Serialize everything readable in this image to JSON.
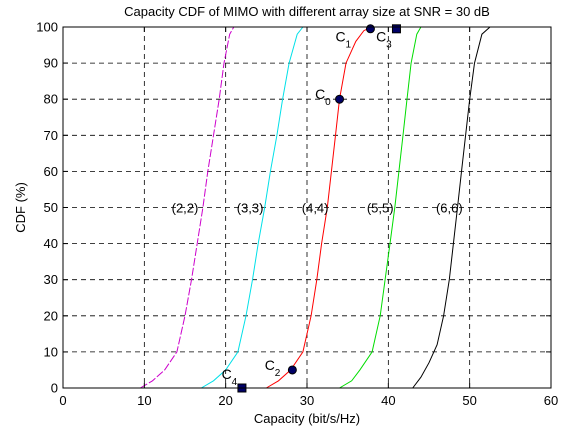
{
  "chart_data": {
    "type": "line",
    "title": "Capacity CDF of MIMO with different array size at SNR = 30 dB",
    "xlabel": "Capacity (bit/s/Hz)",
    "ylabel": "CDF (%)",
    "xlim": [
      0,
      60
    ],
    "ylim": [
      0,
      100
    ],
    "xticks": [
      0,
      10,
      20,
      30,
      40,
      50,
      60
    ],
    "yticks": [
      0,
      10,
      20,
      30,
      40,
      50,
      60,
      70,
      80,
      90,
      100
    ],
    "grid": true,
    "grid_style": "dashed",
    "series": [
      {
        "name": "(2,2)",
        "color": "#cc00cc",
        "dashed": true,
        "points": [
          [
            9.5,
            0
          ],
          [
            11,
            2
          ],
          [
            12.5,
            5
          ],
          [
            14,
            10
          ],
          [
            15,
            20
          ],
          [
            15.8,
            30
          ],
          [
            16.5,
            40
          ],
          [
            17.2,
            50
          ],
          [
            17.8,
            60
          ],
          [
            18.5,
            70
          ],
          [
            19.2,
            80
          ],
          [
            19.8,
            90
          ],
          [
            20.5,
            98
          ],
          [
            21,
            100
          ]
        ]
      },
      {
        "name": "(3,3)",
        "color": "#00e0e8",
        "points": [
          [
            17,
            0
          ],
          [
            18.5,
            2
          ],
          [
            20,
            5
          ],
          [
            21.5,
            10
          ],
          [
            22.5,
            20
          ],
          [
            23.3,
            30
          ],
          [
            24,
            40
          ],
          [
            24.8,
            50
          ],
          [
            25.5,
            60
          ],
          [
            26.3,
            70
          ],
          [
            27,
            80
          ],
          [
            27.8,
            90
          ],
          [
            28.8,
            98
          ],
          [
            29.5,
            100
          ]
        ]
      },
      {
        "name": "(4,4)",
        "color": "#ff0000",
        "points": [
          [
            25,
            0
          ],
          [
            26.5,
            2
          ],
          [
            28,
            5
          ],
          [
            29.5,
            10
          ],
          [
            30.5,
            20
          ],
          [
            31.2,
            30
          ],
          [
            31.8,
            40
          ],
          [
            32.5,
            50
          ],
          [
            33,
            60
          ],
          [
            33.5,
            70
          ],
          [
            34,
            80
          ],
          [
            34.8,
            90
          ],
          [
            36,
            96
          ],
          [
            37,
            99
          ],
          [
            38,
            100
          ]
        ]
      },
      {
        "name": "(5,5)",
        "color": "#00dd00",
        "points": [
          [
            34,
            0
          ],
          [
            35.5,
            2
          ],
          [
            36.5,
            5
          ],
          [
            38,
            10
          ],
          [
            39,
            20
          ],
          [
            39.6,
            30
          ],
          [
            40.2,
            40
          ],
          [
            40.8,
            50
          ],
          [
            41.3,
            60
          ],
          [
            41.8,
            70
          ],
          [
            42.3,
            80
          ],
          [
            42.8,
            90
          ],
          [
            43.5,
            98
          ],
          [
            44,
            100
          ]
        ]
      },
      {
        "name": "(6,6)",
        "color": "#000000",
        "points": [
          [
            43,
            0
          ],
          [
            44,
            3
          ],
          [
            45,
            7
          ],
          [
            46,
            12
          ],
          [
            46.8,
            20
          ],
          [
            47.5,
            30
          ],
          [
            48,
            40
          ],
          [
            48.5,
            50
          ],
          [
            49,
            60
          ],
          [
            49.5,
            70
          ],
          [
            50,
            80
          ],
          [
            50.6,
            90
          ],
          [
            51.5,
            98
          ],
          [
            52.5,
            100
          ]
        ]
      }
    ],
    "series_labels": [
      {
        "text": "(2,2)",
        "x": 15,
        "y": 50
      },
      {
        "text": "(3,3)",
        "x": 23,
        "y": 50
      },
      {
        "text": "(4,4)",
        "x": 31,
        "y": 50
      },
      {
        "text": "(5,5)",
        "x": 39,
        "y": 50
      },
      {
        "text": "(6,6)",
        "x": 47.5,
        "y": 50
      }
    ],
    "points_of_interest": [
      {
        "label": "C",
        "sub": "0",
        "x": 34,
        "y": 80,
        "marker": "circle",
        "label_x": 31,
        "label_y": 80
      },
      {
        "label": "C",
        "sub": "1",
        "x": 37.8,
        "y": 99.5,
        "marker": "circle",
        "label_x": 33.5,
        "label_y": 96
      },
      {
        "label": "C",
        "sub": "2",
        "x": 28.2,
        "y": 5,
        "marker": "circle",
        "label_x": 24.8,
        "label_y": 5
      },
      {
        "label": "C",
        "sub": "3",
        "x": 41,
        "y": 99.5,
        "marker": "square",
        "label_x": 38.5,
        "label_y": 96
      },
      {
        "label": "C",
        "sub": "4",
        "x": 22,
        "y": 0,
        "marker": "square",
        "label_x": 19.5,
        "label_y": 2.5
      }
    ]
  }
}
